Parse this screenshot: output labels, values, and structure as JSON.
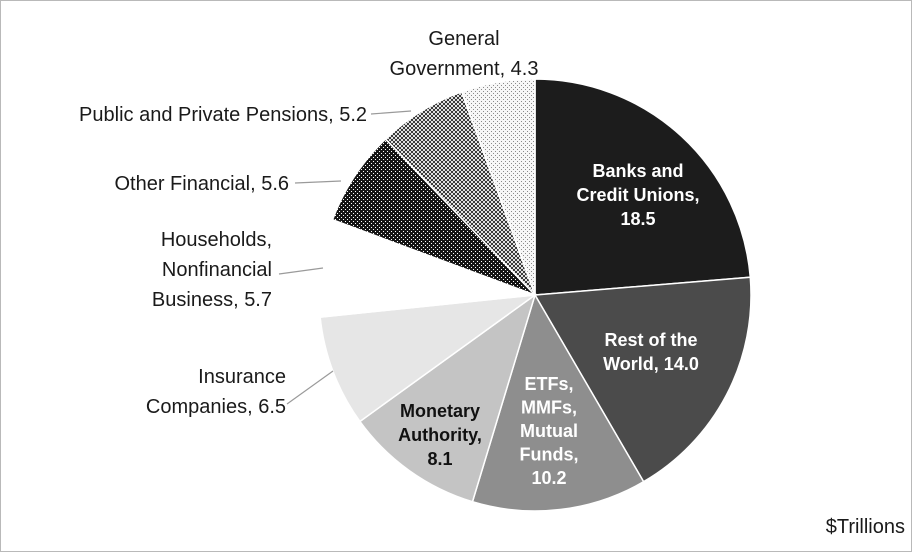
{
  "chart_data": {
    "type": "pie",
    "units_label": "$Trillions",
    "slices": [
      {
        "label_lines": [
          "Banks and",
          "Credit Unions,",
          "18.5"
        ],
        "value": 18.5,
        "color": "#1c1c1c",
        "text_color": "#ffffff",
        "label_position": "inside"
      },
      {
        "label_lines": [
          "Rest of the",
          "World, 14.0"
        ],
        "value": 14.0,
        "color": "#4b4b4b",
        "text_color": "#ffffff",
        "label_position": "inside"
      },
      {
        "label_lines": [
          "ETFs,",
          "MMFs,",
          "Mutual",
          "Funds,",
          "10.2"
        ],
        "value": 10.2,
        "color": "#8e8e8e",
        "text_color": "#ffffff",
        "label_position": "inside"
      },
      {
        "label_lines": [
          "Monetary",
          "Authority,",
          "8.1"
        ],
        "value": 8.1,
        "color": "#c4c4c4",
        "text_color": "#111111",
        "label_position": "inside"
      },
      {
        "label_lines": [
          "Insurance",
          "Companies, 6.5"
        ],
        "value": 6.5,
        "color": "#e6e6e6",
        "text_color": "#1a1a1a",
        "label_position": "outside"
      },
      {
        "label_lines": [
          "Households,",
          "Nonfinancial",
          "Business, 5.7"
        ],
        "value": 5.7,
        "color": "#ffffff",
        "text_color": "#1a1a1a",
        "label_position": "outside"
      },
      {
        "label_lines": [
          "Other Financial, 5.6"
        ],
        "value": 5.6,
        "color": "pattern-dark",
        "text_color": "#1a1a1a",
        "label_position": "outside"
      },
      {
        "label_lines": [
          "Public and Private Pensions, 5.2"
        ],
        "value": 5.2,
        "color": "pattern-medium",
        "text_color": "#1a1a1a",
        "label_position": "outside"
      },
      {
        "label_lines": [
          "General",
          "Government, 4.3"
        ],
        "value": 4.3,
        "color": "pattern-light",
        "text_color": "#1a1a1a",
        "label_position": "outside"
      }
    ]
  }
}
